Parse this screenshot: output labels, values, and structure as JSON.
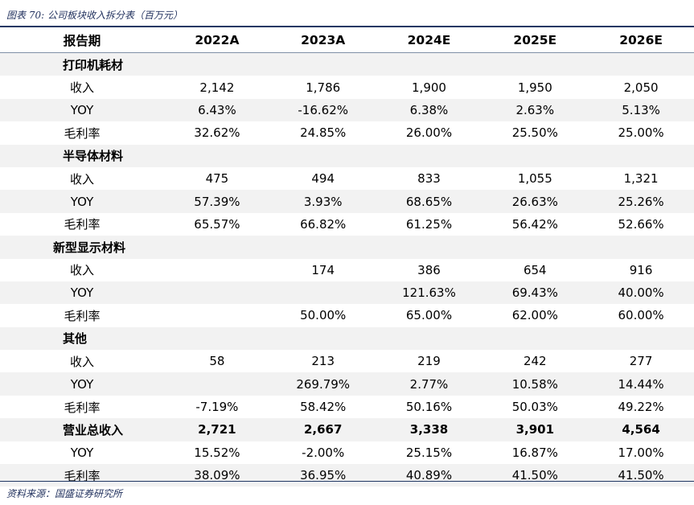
{
  "caption": "图表 70:  公司板块收入拆分表（百万元）",
  "headers": [
    "报告期",
    "2022A",
    "2023A",
    "2024E",
    "2025E",
    "2026E"
  ],
  "rows": [
    {
      "label": "打印机耗材",
      "kind": "category",
      "values": [
        "",
        "",
        "",
        "",
        ""
      ]
    },
    {
      "label": "收入",
      "kind": "item",
      "values": [
        "2,142",
        "1,786",
        "1,900",
        "1,950",
        "2,050"
      ]
    },
    {
      "label": "YOY",
      "kind": "item",
      "values": [
        "6.43%",
        "-16.62%",
        "6.38%",
        "2.63%",
        "5.13%"
      ]
    },
    {
      "label": "毛利率",
      "kind": "item",
      "values": [
        "32.62%",
        "24.85%",
        "26.00%",
        "25.50%",
        "25.00%"
      ]
    },
    {
      "label": "半导体材料",
      "kind": "category",
      "values": [
        "",
        "",
        "",
        "",
        ""
      ]
    },
    {
      "label": "收入",
      "kind": "item",
      "values": [
        "475",
        "494",
        "833",
        "1,055",
        "1,321"
      ]
    },
    {
      "label": "YOY",
      "kind": "item",
      "values": [
        "57.39%",
        "3.93%",
        "68.65%",
        "26.63%",
        "25.26%"
      ]
    },
    {
      "label": "毛利率",
      "kind": "item",
      "values": [
        "65.57%",
        "66.82%",
        "61.25%",
        "56.42%",
        "52.66%"
      ]
    },
    {
      "label": "新型显示材料",
      "kind": "category",
      "values": [
        "",
        "",
        "",
        "",
        ""
      ]
    },
    {
      "label": "收入",
      "kind": "item",
      "values": [
        "",
        "174",
        "386",
        "654",
        "916"
      ]
    },
    {
      "label": "YOY",
      "kind": "item",
      "values": [
        "",
        "",
        "121.63%",
        "69.43%",
        "40.00%"
      ]
    },
    {
      "label": "毛利率",
      "kind": "item",
      "values": [
        "",
        "50.00%",
        "65.00%",
        "62.00%",
        "60.00%"
      ]
    },
    {
      "label": "其他",
      "kind": "category",
      "values": [
        "",
        "",
        "",
        "",
        ""
      ]
    },
    {
      "label": "收入",
      "kind": "item",
      "values": [
        "58",
        "213",
        "219",
        "242",
        "277"
      ]
    },
    {
      "label": "YOY",
      "kind": "item",
      "values": [
        "",
        "269.79%",
        "2.77%",
        "10.58%",
        "14.44%"
      ]
    },
    {
      "label": "毛利率",
      "kind": "item",
      "values": [
        "-7.19%",
        "58.42%",
        "50.16%",
        "50.03%",
        "49.22%"
      ]
    },
    {
      "label": "营业总收入",
      "kind": "total",
      "values": [
        "2,721",
        "2,667",
        "3,338",
        "3,901",
        "4,564"
      ]
    },
    {
      "label": "YOY",
      "kind": "item",
      "values": [
        "15.52%",
        "-2.00%",
        "25.15%",
        "16.87%",
        "17.00%"
      ]
    },
    {
      "label": "毛利率",
      "kind": "item",
      "values": [
        "38.09%",
        "36.95%",
        "40.89%",
        "41.50%",
        "41.50%"
      ]
    }
  ],
  "source": "资料来源：国盛证券研究所",
  "colors": {
    "accent": "#1f3763",
    "shade": "#f2f2f2",
    "caption": "#1f2f5c"
  }
}
